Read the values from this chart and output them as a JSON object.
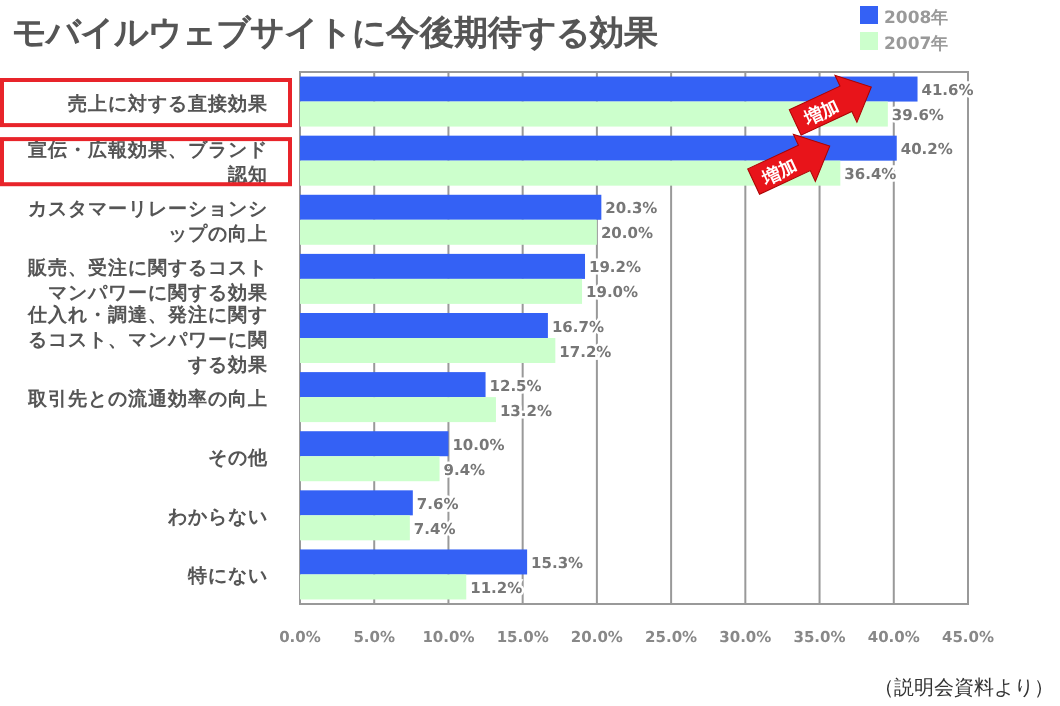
{
  "chart_data": {
    "type": "bar",
    "orientation": "horizontal",
    "title": "モバイルウェブサイトに今後期待する効果",
    "categories": [
      "売上に対する直接効果",
      "宣伝・広報効果、ブランド認知",
      "カスタマーリレーションシップの向上",
      "販売、受注に関するコストマンパワーに関する効果",
      "仕入れ・調達、発注に関するコスト、マンパワーに関する効果",
      "取引先との流通効率の向上",
      "その他",
      "わからない",
      "特にない"
    ],
    "series": [
      {
        "name": "2008年",
        "color": "#3461f5",
        "values": [
          41.6,
          40.2,
          20.3,
          19.2,
          16.7,
          12.5,
          10.0,
          7.6,
          15.3
        ],
        "value_labels": [
          "41.6%",
          "40.2%",
          "20.3%",
          "19.2%",
          "16.7%",
          "12.5%",
          "10.0%",
          "7.6%",
          "15.3%"
        ]
      },
      {
        "name": "2007年",
        "color": "#ccffcc",
        "values": [
          39.6,
          36.4,
          20.0,
          19.0,
          17.2,
          13.2,
          9.4,
          7.4,
          11.2
        ],
        "value_labels": [
          "39.6%",
          "36.4%",
          "20.0%",
          "19.0%",
          "17.2%",
          "13.2%",
          "9.4%",
          "7.4%",
          "11.2%"
        ]
      }
    ],
    "xlim": [
      0,
      45
    ],
    "xticks": [
      {
        "value": 0,
        "label": "0.0%"
      },
      {
        "value": 5,
        "label": "5.0%"
      },
      {
        "value": 10,
        "label": "10.0%"
      },
      {
        "value": 15,
        "label": "15.0%"
      },
      {
        "value": 20,
        "label": "20.0%"
      },
      {
        "value": 25,
        "label": "25.0%"
      },
      {
        "value": 30,
        "label": "30.0%"
      },
      {
        "value": 35,
        "label": "35.0%"
      },
      {
        "value": 40,
        "label": "40.0%"
      },
      {
        "value": 45,
        "label": "45.0%"
      }
    ],
    "grid": "x",
    "legend": "top right",
    "annotations": [
      {
        "text": "増加",
        "x": 35.8,
        "y": "売上に対する直接効果"
      },
      {
        "text": "増加",
        "x": 33,
        "y": "宣伝・広報効果、ブランド認知"
      },
      "（説明会資料より）"
    ]
  }
}
